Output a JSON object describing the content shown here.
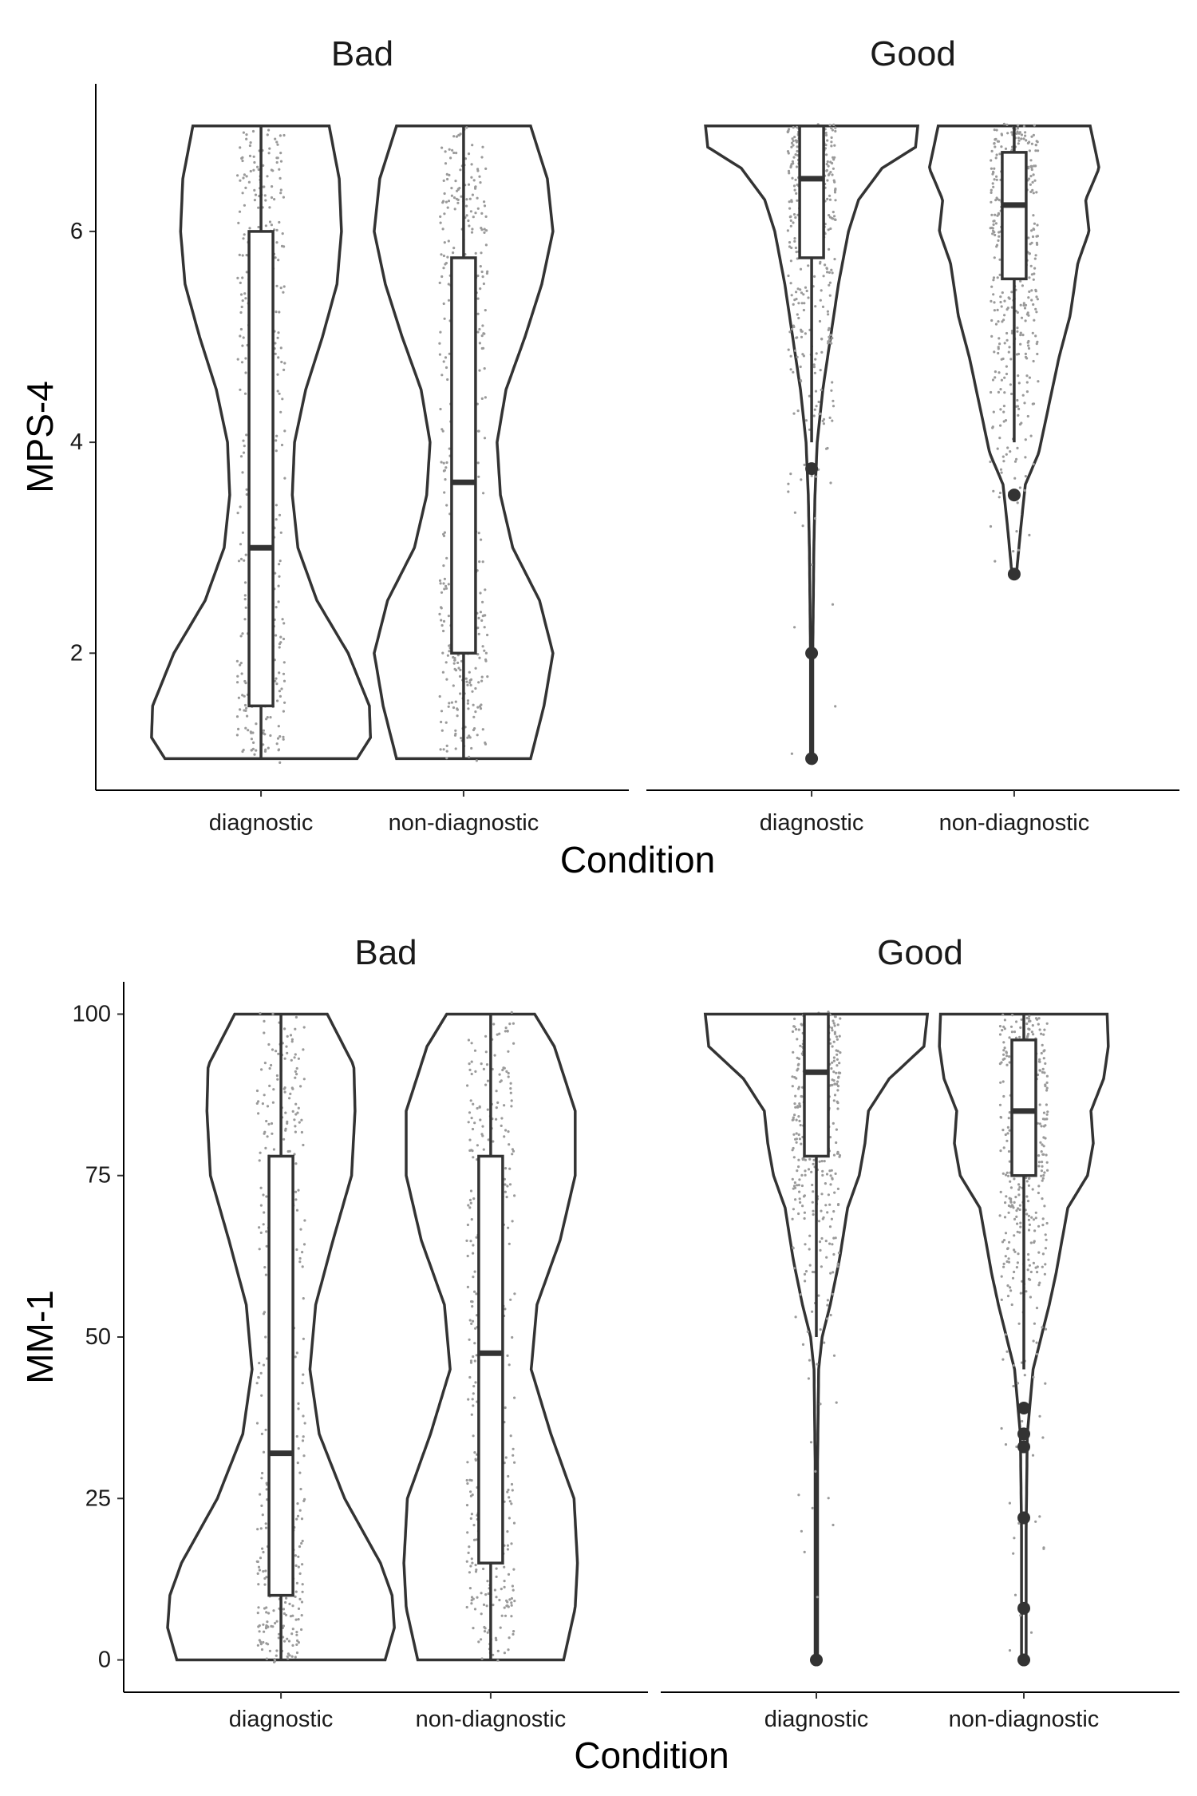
{
  "chart_data": [
    {
      "type": "violin",
      "ylabel": "MPS-4",
      "xlabel": "Condition",
      "ylim": [
        0.7,
        7.4
      ],
      "yticks": [
        2,
        4,
        6
      ],
      "panels": [
        {
          "facet": "Bad",
          "groups": [
            {
              "category": "diagnostic",
              "box": {
                "lower_whisker": 1,
                "q1": 1.5,
                "median": 3.0,
                "q3": 6.0,
                "upper_whisker": 7
              },
              "outliers": [],
              "density": {
                "y": [
                  1.0,
                  1.2,
                  1.5,
                  2.0,
                  2.5,
                  3.0,
                  3.5,
                  4.0,
                  4.5,
                  5.0,
                  5.5,
                  6.0,
                  6.5,
                  7.0
                ],
                "w": [
                  0.86,
                  0.98,
                  0.97,
                  0.78,
                  0.5,
                  0.33,
                  0.28,
                  0.3,
                  0.4,
                  0.55,
                  0.68,
                  0.72,
                  0.7,
                  0.61
                ]
              },
              "n_points": 420
            },
            {
              "category": "non-diagnostic",
              "box": {
                "lower_whisker": 1,
                "q1": 2.0,
                "median": 3.62,
                "q3": 5.75,
                "upper_whisker": 7
              },
              "outliers": [],
              "density": {
                "y": [
                  1.0,
                  1.5,
                  2.0,
                  2.5,
                  3.0,
                  3.5,
                  4.0,
                  4.5,
                  5.0,
                  5.5,
                  6.0,
                  6.5,
                  7.0
                ],
                "w": [
                  0.6,
                  0.72,
                  0.8,
                  0.68,
                  0.44,
                  0.33,
                  0.3,
                  0.38,
                  0.55,
                  0.7,
                  0.8,
                  0.75,
                  0.6
                ]
              },
              "n_points": 420
            }
          ]
        },
        {
          "facet": "Good",
          "groups": [
            {
              "category": "diagnostic",
              "box": {
                "lower_whisker": 4.0,
                "q1": 5.75,
                "median": 6.5,
                "q3": 7.0,
                "upper_whisker": 7
              },
              "outliers": [
                3.75,
                2.0,
                1.0
              ],
              "density": {
                "y": [
                  1.0,
                  2.0,
                  3.0,
                  3.5,
                  4.0,
                  4.5,
                  5.0,
                  5.5,
                  6.0,
                  6.3,
                  6.6,
                  6.8,
                  7.0
                ],
                "w": [
                  0.01,
                  0.01,
                  0.02,
                  0.03,
                  0.05,
                  0.1,
                  0.17,
                  0.24,
                  0.33,
                  0.42,
                  0.63,
                  0.93,
                  0.95
                ]
              },
              "n_points": 420
            },
            {
              "category": "non-diagnostic",
              "box": {
                "lower_whisker": 4.0,
                "q1": 5.55,
                "median": 6.25,
                "q3": 6.75,
                "upper_whisker": 7
              },
              "outliers": [
                3.5,
                2.75
              ],
              "density": {
                "y": [
                  2.75,
                  3.2,
                  3.6,
                  3.9,
                  4.3,
                  4.8,
                  5.2,
                  5.7,
                  6.0,
                  6.3,
                  6.6,
                  7.0
                ],
                "w": [
                  0.02,
                  0.06,
                  0.1,
                  0.22,
                  0.3,
                  0.4,
                  0.5,
                  0.57,
                  0.67,
                  0.64,
                  0.76,
                  0.68
                ]
              },
              "n_points": 420
            }
          ]
        }
      ]
    },
    {
      "type": "violin",
      "ylabel": "MM-1",
      "xlabel": "Condition",
      "ylim": [
        -5,
        105
      ],
      "yticks": [
        0,
        25,
        50,
        75,
        100
      ],
      "panels": [
        {
          "facet": "Bad",
          "groups": [
            {
              "category": "diagnostic",
              "box": {
                "lower_whisker": 0,
                "q1": 10,
                "median": 32,
                "q3": 78,
                "upper_whisker": 100
              },
              "outliers": [],
              "density": {
                "y": [
                  0,
                  5,
                  10,
                  15,
                  25,
                  35,
                  45,
                  55,
                  65,
                  75,
                  85,
                  92,
                  100
                ],
                "w": [
                  0.9,
                  0.98,
                  0.96,
                  0.86,
                  0.55,
                  0.33,
                  0.25,
                  0.3,
                  0.45,
                  0.61,
                  0.64,
                  0.63,
                  0.4
                ]
              },
              "n_points": 420
            },
            {
              "category": "non-diagnostic",
              "box": {
                "lower_whisker": 0,
                "q1": 15,
                "median": 47.5,
                "q3": 78,
                "upper_whisker": 100
              },
              "outliers": [],
              "density": {
                "y": [
                  0,
                  8,
                  15,
                  25,
                  35,
                  45,
                  55,
                  65,
                  75,
                  85,
                  95,
                  100
                ],
                "w": [
                  0.63,
                  0.73,
                  0.75,
                  0.72,
                  0.52,
                  0.35,
                  0.4,
                  0.6,
                  0.73,
                  0.73,
                  0.55,
                  0.38
                ]
              },
              "n_points": 420
            }
          ]
        },
        {
          "facet": "Good",
          "groups": [
            {
              "category": "diagnostic",
              "box": {
                "lower_whisker": 50,
                "q1": 78,
                "median": 91,
                "q3": 100,
                "upper_whisker": 100
              },
              "outliers": [
                0
              ],
              "density": {
                "y": [
                  0,
                  10,
                  30,
                  45,
                  50,
                  55,
                  62,
                  70,
                  75,
                  80,
                  85,
                  90,
                  95,
                  100
                ],
                "w": [
                  0.01,
                  0.01,
                  0.01,
                  0.02,
                  0.05,
                  0.12,
                  0.2,
                  0.27,
                  0.37,
                  0.42,
                  0.45,
                  0.63,
                  0.93,
                  0.96
                ]
              },
              "n_points": 420
            },
            {
              "category": "non-diagnostic",
              "box": {
                "lower_whisker": 45,
                "q1": 75,
                "median": 85,
                "q3": 96,
                "upper_whisker": 100
              },
              "outliers": [
                39,
                35,
                33,
                22,
                8,
                0
              ],
              "density": {
                "y": [
                  0,
                  20,
                  35,
                  45,
                  50,
                  55,
                  60,
                  65,
                  70,
                  75,
                  80,
                  85,
                  90,
                  95,
                  100
                ],
                "w": [
                  0.02,
                  0.02,
                  0.03,
                  0.08,
                  0.15,
                  0.22,
                  0.28,
                  0.33,
                  0.38,
                  0.55,
                  0.6,
                  0.58,
                  0.69,
                  0.73,
                  0.72
                ]
              },
              "n_points": 420
            }
          ]
        }
      ]
    }
  ]
}
